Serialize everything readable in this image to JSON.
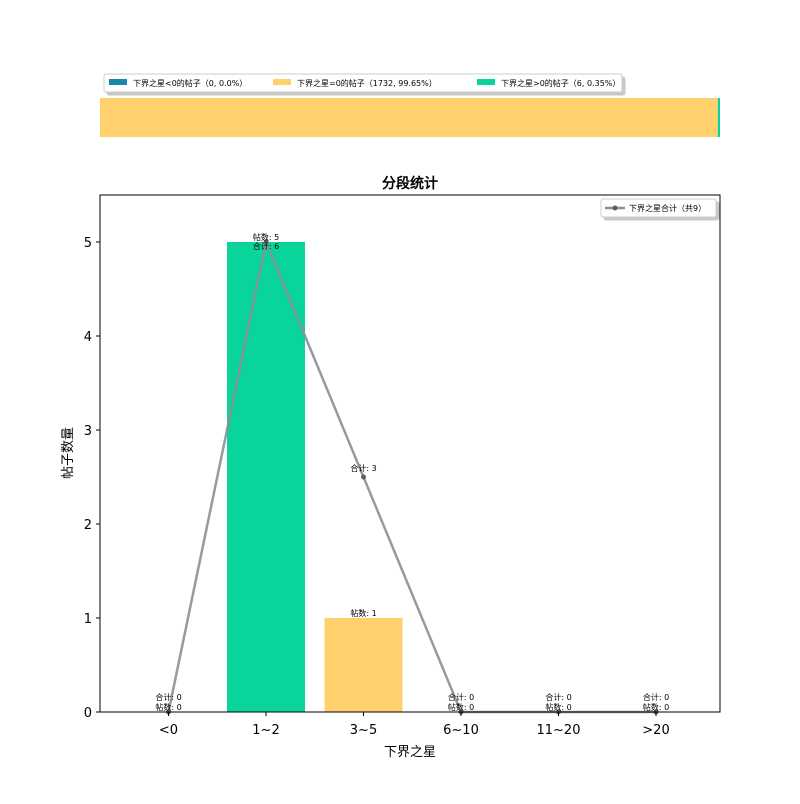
{
  "legend_top": [
    {
      "label": "下界之星<0的帖子（0, 0.0%）",
      "color": "#1a87aa"
    },
    {
      "label": "下界之星=0的帖子（1732, 99.65%）",
      "color": "#ffd06b"
    },
    {
      "label": "下界之星>0的帖子（6, 0.35%）",
      "color": "#08d49c"
    }
  ],
  "colors": {
    "negative": "#1a87aa",
    "zero": "#ffd06b",
    "positive": "#08d49c",
    "line": "#8e8e99"
  },
  "chart_data": [
    {
      "type": "stacked-bar",
      "orientation": "horizontal",
      "series": [
        {
          "name": "下界之星<0的帖子",
          "value": 0,
          "percent": 0.0
        },
        {
          "name": "下界之星=0的帖子",
          "value": 1732,
          "percent": 99.65
        },
        {
          "name": "下界之星>0的帖子",
          "value": 6,
          "percent": 0.35
        }
      ]
    },
    {
      "type": "bar",
      "title": "分段统计",
      "xlabel": "下界之星",
      "ylabel": "帖子数量",
      "categories": [
        "<0",
        "1~2",
        "3~5",
        "6~10",
        "11~20",
        ">20"
      ],
      "ylim": [
        0,
        5.5
      ],
      "yticks": [
        0,
        1,
        2,
        3,
        4,
        5
      ],
      "bars": {
        "values": [
          0,
          5,
          1,
          0,
          0,
          0
        ],
        "colors": [
          "#1a87aa",
          "#08d49c",
          "#ffd06b",
          "#08d49c",
          "#08d49c",
          "#08d49c"
        ]
      },
      "bar_label_prefix": "帖数: ",
      "line": {
        "name": "下界之星合计（共9）",
        "plotted": [
          0,
          5,
          2.5,
          0,
          0,
          0
        ],
        "totals": [
          0,
          6,
          3,
          0,
          0,
          0
        ],
        "label_prefix": "合计: "
      },
      "legend_position": "upper right"
    }
  ]
}
